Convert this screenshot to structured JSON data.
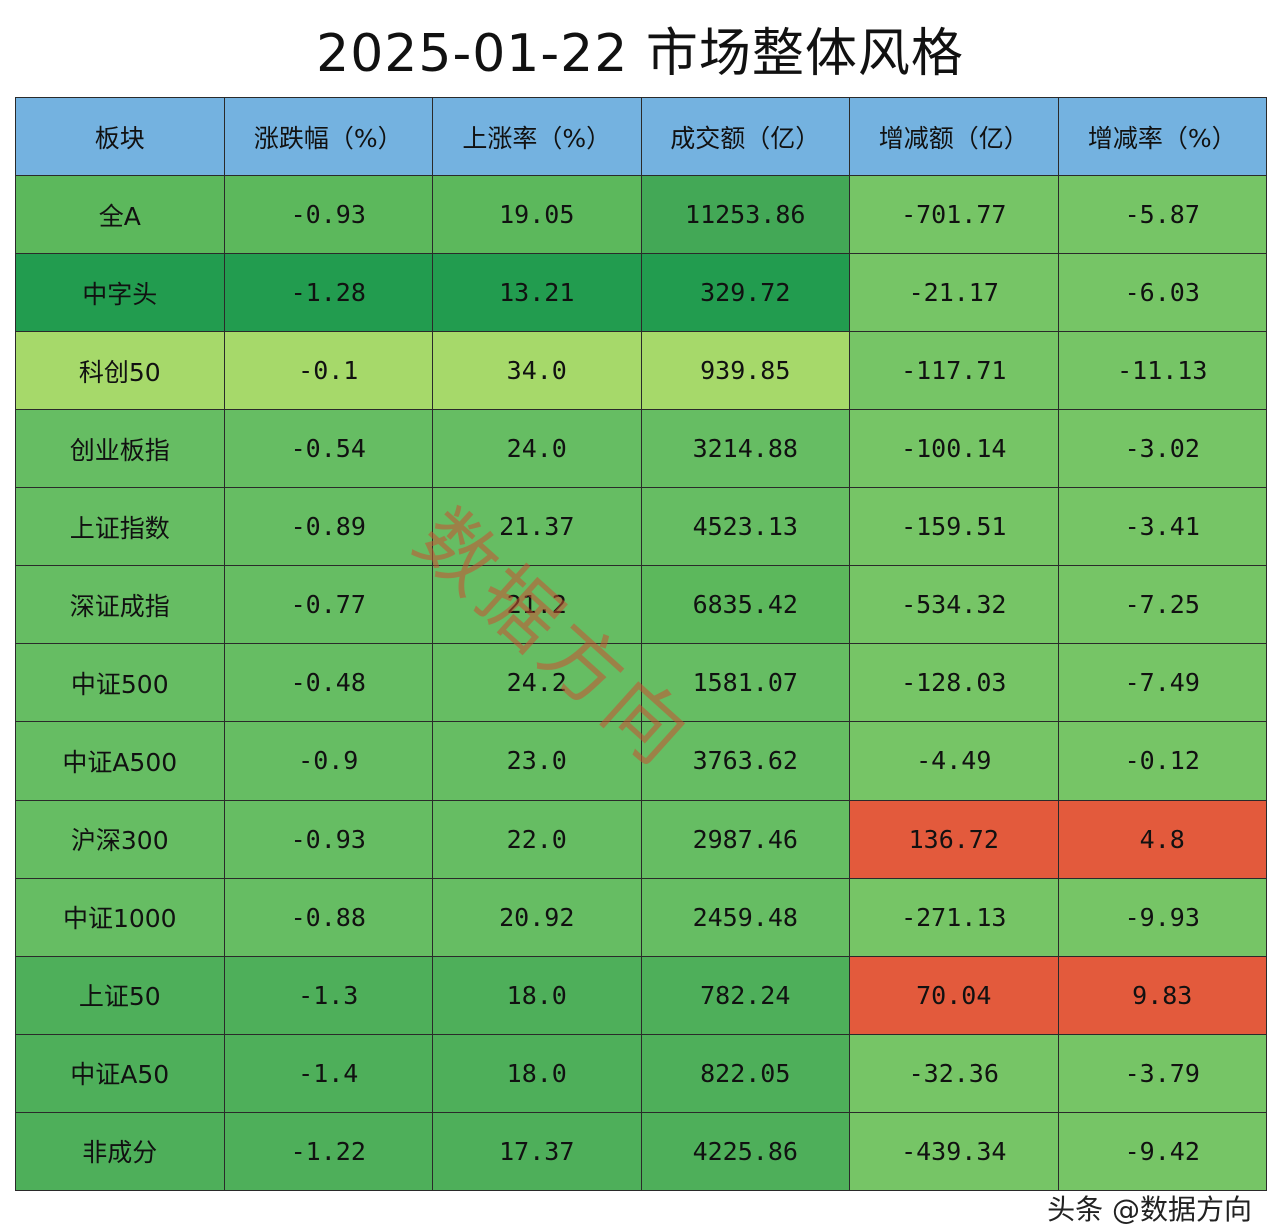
{
  "title": "2025-01-22 市场整体风格",
  "watermark": "数据方向",
  "footer": "头条 @数据方向",
  "colors": {
    "header_bg": "#74b2e0",
    "green_light": "#a6d96a",
    "green_mid": "#76c566",
    "green_base": "#66bd63",
    "green_dark": "#4eaf5a",
    "green_darkest": "#229c4f",
    "red": "#e35a3c"
  },
  "chart_data": {
    "type": "table",
    "columns": [
      "板块",
      "涨跌幅（%）",
      "上涨率（%）",
      "成交额（亿）",
      "增减额（亿）",
      "增减率（%）"
    ],
    "rows": [
      [
        "全A",
        "-0.93",
        "19.05",
        "11253.86",
        "-701.77",
        "-5.87"
      ],
      [
        "中字头",
        "-1.28",
        "13.21",
        "329.72",
        "-21.17",
        "-6.03"
      ],
      [
        "科创50",
        "-0.1",
        "34.0",
        "939.85",
        "-117.71",
        "-11.13"
      ],
      [
        "创业板指",
        "-0.54",
        "24.0",
        "3214.88",
        "-100.14",
        "-3.02"
      ],
      [
        "上证指数",
        "-0.89",
        "21.37",
        "4523.13",
        "-159.51",
        "-3.41"
      ],
      [
        "深证成指",
        "-0.77",
        "21.2",
        "6835.42",
        "-534.32",
        "-7.25"
      ],
      [
        "中证500",
        "-0.48",
        "24.2",
        "1581.07",
        "-128.03",
        "-7.49"
      ],
      [
        "中证A500",
        "-0.9",
        "23.0",
        "3763.62",
        "-4.49",
        "-0.12"
      ],
      [
        "沪深300",
        "-0.93",
        "22.0",
        "2987.46",
        "136.72",
        "4.8"
      ],
      [
        "中证1000",
        "-0.88",
        "20.92",
        "2459.48",
        "-271.13",
        "-9.93"
      ],
      [
        "上证50",
        "-1.3",
        "18.0",
        "782.24",
        "70.04",
        "9.83"
      ],
      [
        "中证A50",
        "-1.4",
        "18.0",
        "822.05",
        "-32.36",
        "-3.79"
      ],
      [
        "非成分",
        "-1.22",
        "17.37",
        "4225.86",
        "-439.34",
        "-9.42"
      ]
    ],
    "cell_colors": [
      [
        "#5cb85c",
        "#5cb85c",
        "#5cb85c",
        "#43a856",
        "#76c566",
        "#76c566"
      ],
      [
        "#229c4f",
        "#229c4f",
        "#229c4f",
        "#229c4f",
        "#76c566",
        "#76c566"
      ],
      [
        "#a6d96a",
        "#a6d96a",
        "#a6d96a",
        "#a6d96a",
        "#76c566",
        "#76c566"
      ],
      [
        "#66bd63",
        "#66bd63",
        "#66bd63",
        "#66bd63",
        "#76c566",
        "#76c566"
      ],
      [
        "#66bd63",
        "#66bd63",
        "#66bd63",
        "#66bd63",
        "#76c566",
        "#76c566"
      ],
      [
        "#66bd63",
        "#66bd63",
        "#66bd63",
        "#5cb85c",
        "#76c566",
        "#76c566"
      ],
      [
        "#66bd63",
        "#66bd63",
        "#66bd63",
        "#66bd63",
        "#76c566",
        "#76c566"
      ],
      [
        "#66bd63",
        "#66bd63",
        "#66bd63",
        "#66bd63",
        "#76c566",
        "#76c566"
      ],
      [
        "#66bd63",
        "#66bd63",
        "#66bd63",
        "#66bd63",
        "#e35a3c",
        "#e35a3c"
      ],
      [
        "#66bd63",
        "#66bd63",
        "#66bd63",
        "#66bd63",
        "#76c566",
        "#76c566"
      ],
      [
        "#4eaf5a",
        "#4eaf5a",
        "#4eaf5a",
        "#4eaf5a",
        "#e35a3c",
        "#e35a3c"
      ],
      [
        "#4eaf5a",
        "#4eaf5a",
        "#4eaf5a",
        "#4eaf5a",
        "#76c566",
        "#76c566"
      ],
      [
        "#4eaf5a",
        "#4eaf5a",
        "#4eaf5a",
        "#4eaf5a",
        "#76c566",
        "#76c566"
      ]
    ]
  }
}
